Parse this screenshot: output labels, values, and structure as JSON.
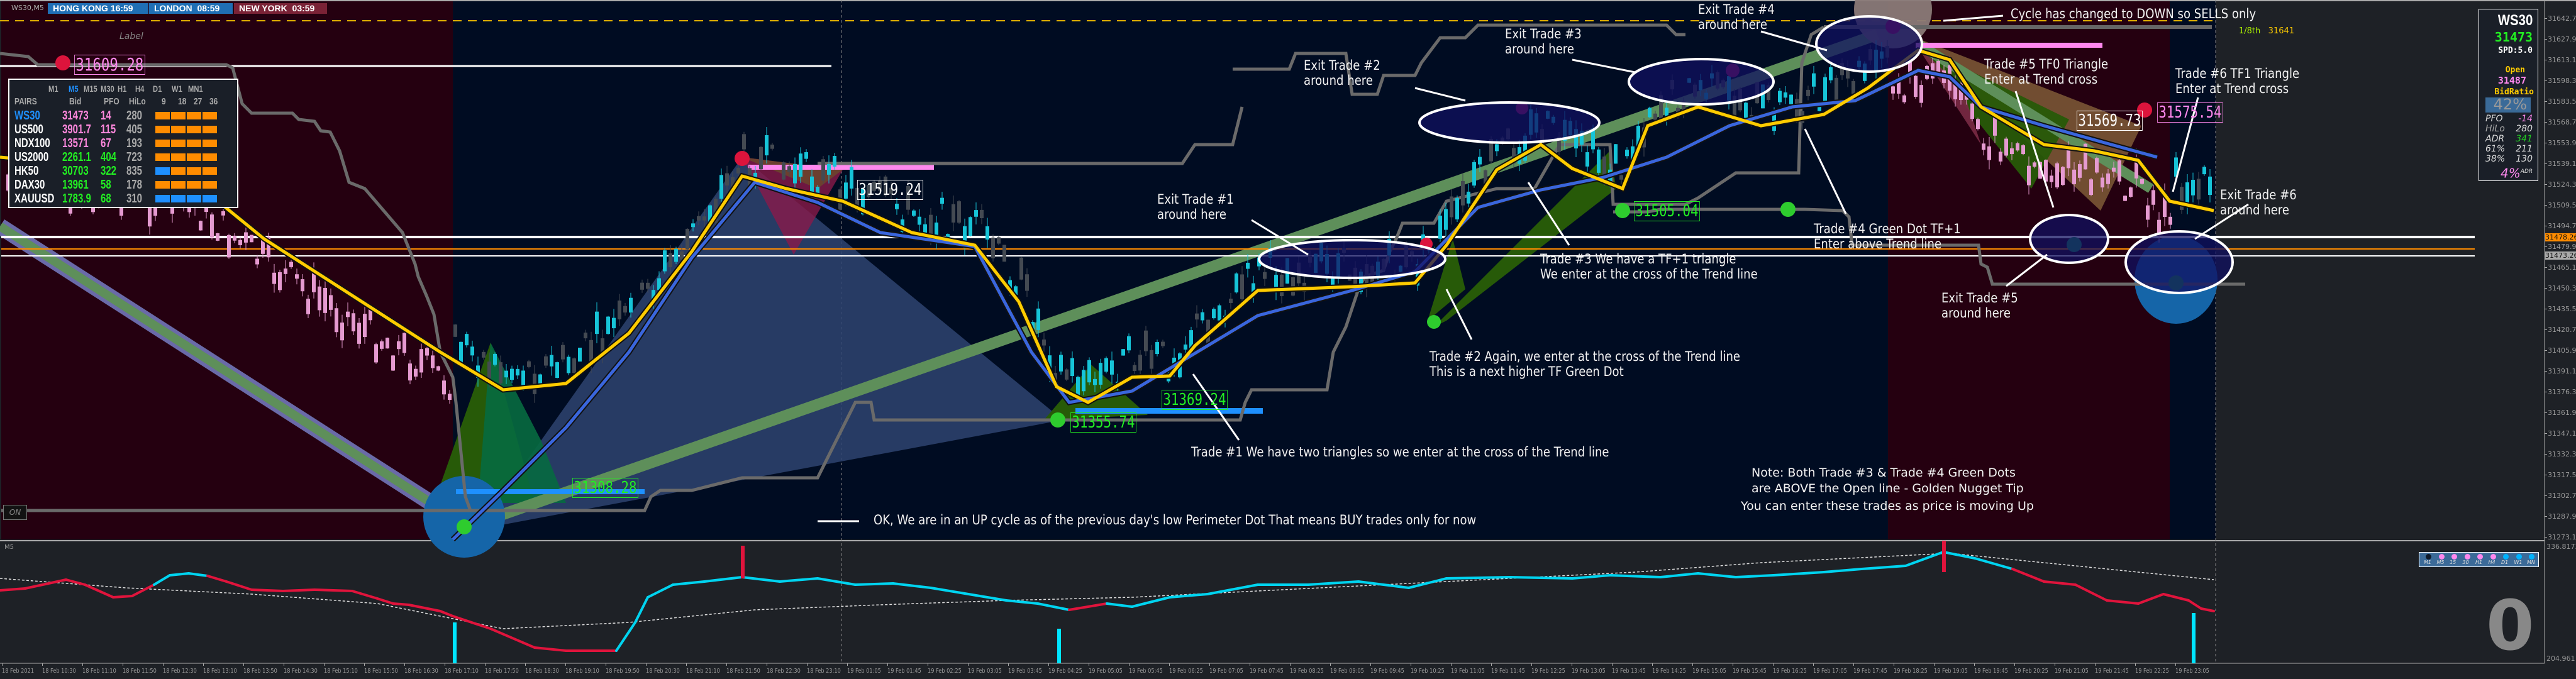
{
  "symbol_label": "WS30,M5",
  "sessions": [
    {
      "city": "HONG KONG",
      "time": "16:59",
      "color": "#1f6fb5"
    },
    {
      "city": "LONDON",
      "time": "08:59",
      "color": "#1f6fb5"
    },
    {
      "city": "NEW YORK",
      "time": "03:59",
      "color": "#7a2236"
    }
  ],
  "label_text": "Label",
  "pairs_table": {
    "timeframes": [
      "M1",
      "M5",
      "M15",
      "M30",
      "H1",
      "H4",
      "D1",
      "W1",
      "MN1"
    ],
    "active_timeframe": "M5",
    "headers": [
      "PAIRS",
      "Bid",
      "PFO",
      "HiLo",
      "9",
      "18",
      "27",
      "36"
    ],
    "rows": [
      {
        "pair": "WS30",
        "bid": "31473",
        "pfo": "14",
        "hilo": "280",
        "bid_color": "#ff88dd",
        "bars": [
          "orange",
          "orange",
          "orange",
          "orange"
        ]
      },
      {
        "pair": "US500",
        "bid": "3901.7",
        "pfo": "115",
        "hilo": "405",
        "bid_color": "#ff88dd",
        "bars": [
          "orange",
          "orange",
          "orange",
          "orange"
        ]
      },
      {
        "pair": "NDX100",
        "bid": "13571",
        "pfo": "67",
        "hilo": "193",
        "bid_color": "#ff88dd",
        "bars": [
          "orange",
          "orange",
          "orange",
          "orange"
        ]
      },
      {
        "pair": "US2000",
        "bid": "2261.1",
        "pfo": "404",
        "hilo": "723",
        "bid_color": "#22ee22",
        "bars": [
          "orange",
          "orange",
          "orange",
          "orange"
        ]
      },
      {
        "pair": "HK50",
        "bid": "30703",
        "pfo": "322",
        "hilo": "835",
        "bid_color": "#22ee22",
        "bars": [
          "blue",
          "orange",
          "orange",
          "orange"
        ]
      },
      {
        "pair": "DAX30",
        "bid": "13961",
        "pfo": "58",
        "hilo": "178",
        "bid_color": "#22ee22",
        "bars": [
          "orange",
          "orange",
          "orange",
          "orange"
        ]
      },
      {
        "pair": "XAUUSD",
        "bid": "1783.9",
        "pfo": "68",
        "hilo": "310",
        "bid_color": "#22ee22",
        "bars": [
          "blue",
          "blue",
          "blue",
          "blue"
        ]
      }
    ]
  },
  "info_panel": {
    "symbol": "WS30",
    "bid": "31473",
    "spread": "SPD:5.0",
    "open_label": "Open",
    "open_value": "31487",
    "bidratio_label": "BidRatio",
    "bidratio_value": "42%",
    "stats": [
      {
        "label": "PFO",
        "value": "-14"
      },
      {
        "label": "HiLo",
        "value": "280"
      },
      {
        "label": "ADR",
        "value": "341"
      },
      {
        "label": "61%",
        "value": "211"
      },
      {
        "label": "38%",
        "value": "130"
      }
    ],
    "adr_pct": "4%",
    "adr_suffix": "ADR"
  },
  "price_labels": {
    "p1": "31609.28",
    "p2": "31519.24",
    "p3": "31505.04",
    "p4": "31369.24",
    "p5": "31355.74",
    "p6": "31308.28",
    "p7": "31569.73",
    "p8": "31575.54"
  },
  "eighth_label": "1/8th",
  "eighth_value": "31641",
  "annotations": {
    "exit1": [
      "Exit Trade #1",
      "around here"
    ],
    "exit2": [
      "Exit Trade #2",
      "around here"
    ],
    "exit3": [
      "Exit Trade #3",
      "around here"
    ],
    "exit4": [
      "Exit Trade #4",
      "around here"
    ],
    "exit5": [
      "Exit Trade #5",
      "around here"
    ],
    "exit6": [
      "Exit Trade #6",
      "around here"
    ],
    "cycle_down": "Cycle has changed to DOWN so SELLS only",
    "trade5": [
      "Trade #5 TF0 Triangle",
      "Enter at Trend cross"
    ],
    "trade6": [
      "Trade #6 TF1 Triangle",
      "Enter at Trend cross"
    ],
    "trade4": [
      "Trade #4 Green Dot TF+1",
      "Enter above Trend line"
    ],
    "trade3": [
      "Trade #3 We have a TF+1 triangle",
      "We enter at the cross of the Trend line"
    ],
    "trade2": [
      "Trade #2 Again, we enter at the cross of the Trend line",
      "This is a next higher TF Green Dot"
    ],
    "trade1": "Trade #1 We have two triangles so we enter at the cross of the Trend line",
    "up_cycle": "OK, We are in an UP cycle as of the previous day's low Perimeter Dot    That means BUY trades only for now",
    "note": [
      "Note: Both Trade #3 & Trade #4 Green Dots",
      "are ABOVE the Open line - Golden Nugget Tip",
      "You can enter these trades as price is moving Up"
    ]
  },
  "on_button": "ON",
  "indicator_label": "M5",
  "price_axis": [
    "31642.70",
    "31627.90",
    "31613.10",
    "31598.30",
    "31583.50",
    "31568.70",
    "31553.90",
    "31539.10",
    "31524.30",
    "31509.50",
    "31494.70",
    "31479.90",
    "31465.10",
    "31450.30",
    "31435.50",
    "31420.70",
    "31405.90",
    "31391.10",
    "31376.30",
    "31361.90",
    "31347.10",
    "31332.30",
    "31317.50",
    "31302.70",
    "31287.90",
    "31273.10"
  ],
  "current_ask": "31478.26",
  "current_bid": "31473.26",
  "osc_axis": {
    "max": "336.8173",
    "min": "204.961"
  },
  "osc_value": "0",
  "tf_dots": [
    {
      "label": "M1",
      "color": "#0f1a2a"
    },
    {
      "label": "M5",
      "color": "#ff88ee"
    },
    {
      "label": "15",
      "color": "#ff88ee"
    },
    {
      "label": "30",
      "color": "#ff88ee"
    },
    {
      "label": "H1",
      "color": "#ff88ee"
    },
    {
      "label": "H4",
      "color": "#ff88ee"
    },
    {
      "label": "D1",
      "color": "#00b4ff"
    },
    {
      "label": "W1",
      "color": "#00b4ff"
    },
    {
      "label": "MN",
      "color": "#00b4ff"
    }
  ],
  "time_axis": [
    "18 Feb 2021",
    "18 Feb 10:30",
    "18 Feb 11:10",
    "18 Feb 11:50",
    "18 Feb 12:30",
    "18 Feb 13:10",
    "18 Feb 13:50",
    "18 Feb 14:30",
    "18 Feb 15:10",
    "18 Feb 15:50",
    "18 Feb 16:30",
    "18 Feb 17:10",
    "18 Feb 17:50",
    "18 Feb 18:30",
    "18 Feb 19:10",
    "18 Feb 19:50",
    "18 Feb 20:30",
    "18 Feb 21:10",
    "18 Feb 21:50",
    "18 Feb 22:30",
    "18 Feb 23:10",
    "19 Feb 01:05",
    "19 Feb 01:45",
    "19 Feb 02:25",
    "19 Feb 03:05",
    "19 Feb 03:45",
    "19 Feb 04:25",
    "19 Feb 05:05",
    "19 Feb 05:45",
    "19 Feb 06:25",
    "19 Feb 07:05",
    "19 Feb 07:45",
    "19 Feb 08:25",
    "19 Feb 09:05",
    "19 Feb 09:45",
    "19 Feb 10:25",
    "19 Feb 11:05",
    "19 Feb 11:45",
    "19 Feb 12:25",
    "19 Feb 13:05",
    "19 Feb 13:45",
    "19 Feb 14:25",
    "19 Feb 15:05",
    "19 Feb 15:45",
    "19 Feb 16:25",
    "19 Feb 17:05",
    "19 Feb 17:45",
    "19 Feb 18:25",
    "19 Feb 19:05",
    "19 Feb 19:45",
    "19 Feb 20:25",
    "19 Feb 21:05",
    "19 Feb 21:45",
    "19 Feb 22:25",
    "19 Feb 23:05"
  ],
  "colors": {
    "bull_bg": "#000c22",
    "bear_bg": "#250010",
    "chart_bg": "#1e2126",
    "fast_ma": "#ffcc00",
    "slow_ma": "#3a66dd",
    "trend": "#5e8f5a",
    "osc_up": "#00d4f0",
    "osc_down": "#e0143c",
    "orange_bar": "#ff8c00",
    "blue_bar": "#1e90ff"
  }
}
